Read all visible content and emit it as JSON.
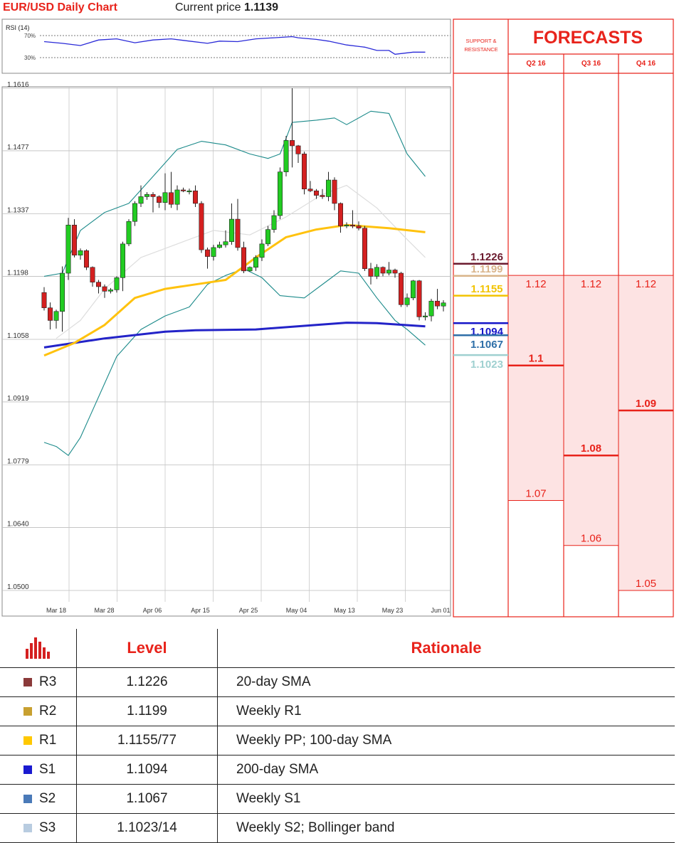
{
  "header": {
    "title": "EUR/USD Daily Chart",
    "price_label": "Current price",
    "price_value": "1.1139"
  },
  "rsi": {
    "label": "RSI (14)",
    "levels": [
      "70%",
      "30%"
    ]
  },
  "colors": {
    "bull": "#22cc22",
    "bear": "#d42020",
    "bollinger": "#1b8a8a",
    "sma20": "#dddddd",
    "sma100": "#ffc20e",
    "sma200": "#2323c8",
    "accent_red": "#e8231b",
    "forecast_fill": "#fde3e3"
  },
  "chart_data": {
    "type": "candlestick",
    "ylim": [
      1.05,
      1.1616
    ],
    "y_ticks": [
      "1.1616",
      "1.1477",
      "1.1337",
      "1.1198",
      "1.1058",
      "1.0919",
      "1.0779",
      "1.0640",
      "1.0500"
    ],
    "y_tick_values": [
      1.1616,
      1.1477,
      1.1337,
      1.1198,
      1.1058,
      1.0919,
      1.0779,
      1.064,
      1.05
    ],
    "x_ticks": [
      "Mar 18",
      "Mar 28",
      "Apr 06",
      "Apr 15",
      "Apr 25",
      "May 04",
      "May 13",
      "May 23",
      "Jun 01"
    ],
    "candles": [
      [
        1.1162,
        1.1128,
        1.1174,
        1.1122
      ],
      [
        1.1128,
        1.11,
        1.114,
        1.108
      ],
      [
        1.11,
        1.112,
        1.1124,
        1.1082
      ],
      [
        1.112,
        1.1205,
        1.122,
        1.1075
      ],
      [
        1.1205,
        1.1312,
        1.1328,
        1.119
      ],
      [
        1.1312,
        1.1245,
        1.1325,
        1.124
      ],
      [
        1.1245,
        1.1255,
        1.126,
        1.1235
      ],
      [
        1.1255,
        1.1218,
        1.1258,
        1.1212
      ],
      [
        1.1218,
        1.1185,
        1.122,
        1.1175
      ],
      [
        1.1185,
        1.1175,
        1.119,
        1.116
      ],
      [
        1.1175,
        1.1165,
        1.118,
        1.115
      ],
      [
        1.1165,
        1.1168,
        1.1172,
        1.116
      ],
      [
        1.1168,
        1.1195,
        1.1198,
        1.1162
      ],
      [
        1.1195,
        1.127,
        1.1275,
        1.1165
      ],
      [
        1.127,
        1.132,
        1.1325,
        1.1265
      ],
      [
        1.132,
        1.136,
        1.1365,
        1.131
      ],
      [
        1.136,
        1.1375,
        1.14,
        1.1352
      ],
      [
        1.1375,
        1.138,
        1.1385,
        1.1368
      ],
      [
        1.138,
        1.1375,
        1.1385,
        1.134
      ],
      [
        1.1375,
        1.1362,
        1.1378,
        1.135
      ],
      [
        1.1362,
        1.1384,
        1.1427,
        1.1345
      ],
      [
        1.1384,
        1.1358,
        1.143,
        1.135
      ],
      [
        1.1358,
        1.139,
        1.14,
        1.1345
      ],
      [
        1.139,
        1.1388,
        1.1395,
        1.1385
      ],
      [
        1.1388,
        1.1388,
        1.1393,
        1.138
      ],
      [
        1.1388,
        1.136,
        1.14,
        1.1352
      ],
      [
        1.136,
        1.1257,
        1.1365,
        1.125
      ],
      [
        1.1257,
        1.1242,
        1.1262,
        1.1215
      ],
      [
        1.1242,
        1.1262,
        1.1268,
        1.1233
      ],
      [
        1.1262,
        1.1268,
        1.1275,
        1.126
      ],
      [
        1.1268,
        1.1275,
        1.13,
        1.1262
      ],
      [
        1.1275,
        1.1325,
        1.136,
        1.1268
      ],
      [
        1.1325,
        1.1262,
        1.137,
        1.1255
      ],
      [
        1.1262,
        1.121,
        1.1275,
        1.1205
      ],
      [
        1.121,
        1.1218,
        1.122,
        1.1208
      ],
      [
        1.1218,
        1.124,
        1.1245,
        1.121
      ],
      [
        1.124,
        1.127,
        1.128,
        1.1232
      ],
      [
        1.127,
        1.1302,
        1.131,
        1.1265
      ],
      [
        1.1302,
        1.1333,
        1.1345,
        1.1295
      ],
      [
        1.1333,
        1.143,
        1.144,
        1.1325
      ],
      [
        1.143,
        1.15,
        1.151,
        1.142
      ],
      [
        1.15,
        1.1488,
        1.1616,
        1.144
      ],
      [
        1.1488,
        1.147,
        1.149,
        1.145
      ],
      [
        1.147,
        1.1392,
        1.1475,
        1.138
      ],
      [
        1.1392,
        1.1388,
        1.141,
        1.1385
      ],
      [
        1.1388,
        1.1378,
        1.1392,
        1.137
      ],
      [
        1.1378,
        1.1375,
        1.1392,
        1.137
      ],
      [
        1.1375,
        1.1412,
        1.143,
        1.1365
      ],
      [
        1.1412,
        1.136,
        1.1418,
        1.1345
      ],
      [
        1.136,
        1.131,
        1.1362,
        1.1295
      ],
      [
        1.131,
        1.1312,
        1.1318,
        1.1305
      ],
      [
        1.1312,
        1.131,
        1.1345,
        1.1305
      ],
      [
        1.131,
        1.1305,
        1.132,
        1.13
      ],
      [
        1.1305,
        1.1215,
        1.131,
        1.121
      ],
      [
        1.1215,
        1.1198,
        1.1228,
        1.118
      ],
      [
        1.1198,
        1.1218,
        1.1225,
        1.1192
      ],
      [
        1.1218,
        1.1205,
        1.122,
        1.1198
      ],
      [
        1.1205,
        1.1212,
        1.123,
        1.12
      ],
      [
        1.1212,
        1.1205,
        1.1215,
        1.1195
      ],
      [
        1.1205,
        1.1135,
        1.1208,
        1.113
      ],
      [
        1.1135,
        1.115,
        1.116,
        1.113
      ],
      [
        1.115,
        1.1188,
        1.119,
        1.1145
      ],
      [
        1.1188,
        1.1108,
        1.119,
        1.11
      ],
      [
        1.1108,
        1.111,
        1.1118,
        1.11
      ],
      [
        1.111,
        1.1143,
        1.1148,
        1.1098
      ],
      [
        1.1143,
        1.1132,
        1.117,
        1.1125
      ],
      [
        1.1132,
        1.1139,
        1.1145,
        1.112
      ]
    ],
    "bollinger_upper": [
      [
        0,
        1.1198
      ],
      [
        3,
        1.1205
      ],
      [
        6,
        1.13
      ],
      [
        10,
        1.134
      ],
      [
        14,
        1.136
      ],
      [
        18,
        1.142
      ],
      [
        22,
        1.148
      ],
      [
        26,
        1.1498
      ],
      [
        30,
        1.149
      ],
      [
        34,
        1.147
      ],
      [
        37,
        1.146
      ],
      [
        39,
        1.147
      ],
      [
        41,
        1.154
      ],
      [
        45,
        1.1545
      ],
      [
        48,
        1.155
      ],
      [
        50,
        1.1535
      ],
      [
        54,
        1.1565
      ],
      [
        57,
        1.156
      ],
      [
        60,
        1.147
      ],
      [
        63,
        1.142
      ]
    ],
    "bollinger_lower": [
      [
        0,
        1.0829
      ],
      [
        2,
        1.082
      ],
      [
        4,
        1.08
      ],
      [
        6,
        1.084
      ],
      [
        9,
        1.093
      ],
      [
        12,
        1.102
      ],
      [
        16,
        1.108
      ],
      [
        20,
        1.111
      ],
      [
        24,
        1.113
      ],
      [
        27,
        1.118
      ],
      [
        30,
        1.12
      ],
      [
        33,
        1.1215
      ],
      [
        36,
        1.1195
      ],
      [
        39,
        1.1155
      ],
      [
        43,
        1.115
      ],
      [
        47,
        1.119
      ],
      [
        49,
        1.121
      ],
      [
        52,
        1.1205
      ],
      [
        55,
        1.115
      ],
      [
        58,
        1.11
      ],
      [
        60,
        1.108
      ],
      [
        63,
        1.1045
      ]
    ],
    "sma20": [
      [
        2,
        1.106
      ],
      [
        6,
        1.11
      ],
      [
        10,
        1.117
      ],
      [
        16,
        1.124
      ],
      [
        22,
        1.127
      ],
      [
        28,
        1.13
      ],
      [
        34,
        1.129
      ],
      [
        40,
        1.133
      ],
      [
        46,
        1.138
      ],
      [
        50,
        1.14
      ],
      [
        55,
        1.135
      ],
      [
        60,
        1.128
      ],
      [
        63,
        1.124
      ]
    ],
    "sma100": [
      [
        0,
        1.1022
      ],
      [
        5,
        1.105
      ],
      [
        10,
        1.109
      ],
      [
        15,
        1.115
      ],
      [
        20,
        1.117
      ],
      [
        25,
        1.118
      ],
      [
        30,
        1.119
      ],
      [
        35,
        1.124
      ],
      [
        40,
        1.1285
      ],
      [
        45,
        1.1302
      ],
      [
        50,
        1.1312
      ],
      [
        57,
        1.1305
      ],
      [
        63,
        1.1296
      ]
    ],
    "sma200": [
      [
        0,
        1.104
      ],
      [
        10,
        1.106
      ],
      [
        20,
        1.1075
      ],
      [
        25,
        1.1078
      ],
      [
        35,
        1.108
      ],
      [
        45,
        1.109
      ],
      [
        50,
        1.1095
      ],
      [
        55,
        1.1094
      ],
      [
        63,
        1.1087
      ]
    ],
    "rsi_values": [
      [
        0,
        59
      ],
      [
        3,
        56
      ],
      [
        6,
        52
      ],
      [
        9,
        62
      ],
      [
        12,
        64
      ],
      [
        15,
        57
      ],
      [
        18,
        62
      ],
      [
        21,
        64
      ],
      [
        24,
        60
      ],
      [
        27,
        56
      ],
      [
        29,
        60
      ],
      [
        32,
        59
      ],
      [
        35,
        64
      ],
      [
        38,
        66
      ],
      [
        41,
        68
      ],
      [
        42,
        66
      ],
      [
        45,
        63
      ],
      [
        47,
        60
      ],
      [
        50,
        53
      ],
      [
        53,
        49
      ],
      [
        55,
        43
      ],
      [
        57,
        43
      ],
      [
        58,
        36
      ],
      [
        61,
        40
      ],
      [
        63,
        40
      ]
    ]
  },
  "sr_levels": [
    {
      "value": 1.1226,
      "label": "1.1226",
      "color": "#6b1a2e"
    },
    {
      "value": 1.1199,
      "label": "1.1199",
      "color": "#d9b48a"
    },
    {
      "value": 1.1155,
      "label": "1.1155",
      "color": "#f2c300"
    },
    {
      "value": 1.1094,
      "label": "1.1094",
      "color": "#1515c8"
    },
    {
      "value": 1.1067,
      "label": "1.1067",
      "color": "#2e6fa8"
    },
    {
      "value": 1.1023,
      "label": "1.1023",
      "color": "#9fd0d0"
    }
  ],
  "side_panel": {
    "sr_header_line1": "SUPPORT &",
    "sr_header_line2": "RESISTANCE",
    "forecasts_title": "FORECASTS"
  },
  "forecasts": [
    {
      "quarter": "Q2 16",
      "high": 1.12,
      "high_label": "1.12",
      "mid": 1.1,
      "mid_label": "1.1",
      "low": 1.07,
      "low_label": "1.07"
    },
    {
      "quarter": "Q3 16",
      "high": 1.12,
      "high_label": "1.12",
      "mid": 1.08,
      "mid_label": "1.08",
      "low": 1.06,
      "low_label": "1.06"
    },
    {
      "quarter": "Q4 16",
      "high": 1.12,
      "high_label": "1.12",
      "mid": 1.09,
      "mid_label": "1.09",
      "low": 1.05,
      "low_label": "1.05"
    }
  ],
  "table": {
    "headers": {
      "level": "Level",
      "rationale": "Rationale"
    },
    "rows": [
      {
        "name": "R3",
        "level": "1.1226",
        "rationale": "20-day SMA",
        "color": "#8b3a3a"
      },
      {
        "name": "R2",
        "level": "1.1199",
        "rationale": "Weekly R1",
        "color": "#c8a030"
      },
      {
        "name": "R1",
        "level": "1.1155/77",
        "rationale": "Weekly PP; 100-day SMA",
        "color": "#ffc800"
      },
      {
        "name": "S1",
        "level": "1.1094",
        "rationale": "200-day SMA",
        "color": "#1a1ad0"
      },
      {
        "name": "S2",
        "level": "1.1067",
        "rationale": "Weekly S1",
        "color": "#4a7ab8"
      },
      {
        "name": "S3",
        "level": "1.1023/14",
        "rationale": "Weekly S2; Bollinger band",
        "color": "#b8cce0"
      }
    ]
  }
}
